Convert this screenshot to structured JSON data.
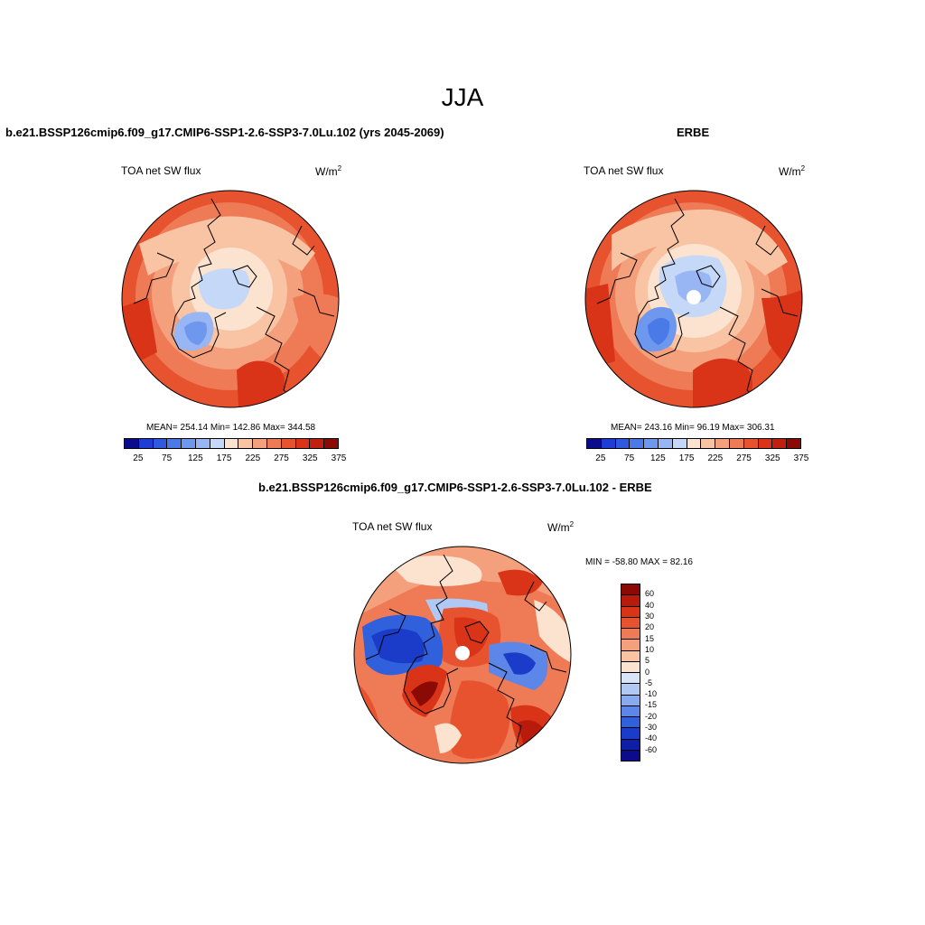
{
  "figure_title": "JJA",
  "panels": [
    {
      "title": "b.e21.BSSP126cmip6.f09_g17.CMIP6-SSP1-2.6-SSP3-7.0Lu.102 (yrs 2045-2069)",
      "variable": "TOA net SW flux",
      "unit_base": "W/m",
      "unit_exp": "2",
      "stats": "MEAN= 254.14  Min= 142.86  Max= 344.58",
      "colorbar_ticks": [
        "25",
        "75",
        "125",
        "175",
        "225",
        "275",
        "325",
        "375"
      ],
      "colorbar_colors": [
        "#0b0b8c",
        "#1e3cd6",
        "#2f5ae0",
        "#4a7ae8",
        "#6e97ee",
        "#98b6f3",
        "#c6d8f8",
        "#fbe3d0",
        "#f8c4a4",
        "#f4a07c",
        "#ef7a56",
        "#e6532e",
        "#d93418",
        "#c11f10",
        "#8c0a06"
      ]
    },
    {
      "title": "ERBE",
      "variable": "TOA net SW flux",
      "unit_base": "W/m",
      "unit_exp": "2",
      "stats": "MEAN= 243.16  Min=  96.19  Max= 306.31",
      "colorbar_ticks": [
        "25",
        "75",
        "125",
        "175",
        "225",
        "275",
        "325",
        "375"
      ],
      "colorbar_colors": [
        "#0b0b8c",
        "#1e3cd6",
        "#2f5ae0",
        "#4a7ae8",
        "#6e97ee",
        "#98b6f3",
        "#c6d8f8",
        "#fbe3d0",
        "#f8c4a4",
        "#f4a07c",
        "#ef7a56",
        "#e6532e",
        "#d93418",
        "#c11f10",
        "#8c0a06"
      ]
    },
    {
      "title": "b.e21.BSSP126cmip6.f09_g17.CMIP6-SSP1-2.6-SSP3-7.0Lu.102 - ERBE",
      "variable": "TOA net SW flux",
      "unit_base": "W/m",
      "unit_exp": "2",
      "stats": "MIN = -58.80 MAX =  82.16",
      "colorbar_ticks": [
        "60",
        "40",
        "30",
        "20",
        "15",
        "10",
        "5",
        "0",
        "-5",
        "-10",
        "-15",
        "-20",
        "-30",
        "-40",
        "-60"
      ],
      "colorbar_colors": [
        "#8c0a06",
        "#b81a0c",
        "#d93418",
        "#e6532e",
        "#ef7a56",
        "#f4a07c",
        "#f8c4a4",
        "#fbe3d0",
        "#d8e4f8",
        "#b0c8f4",
        "#8aaaf0",
        "#5c86e8",
        "#3060dc",
        "#1a3cc8",
        "#0f1ea8",
        "#0b0b8c"
      ]
    }
  ]
}
